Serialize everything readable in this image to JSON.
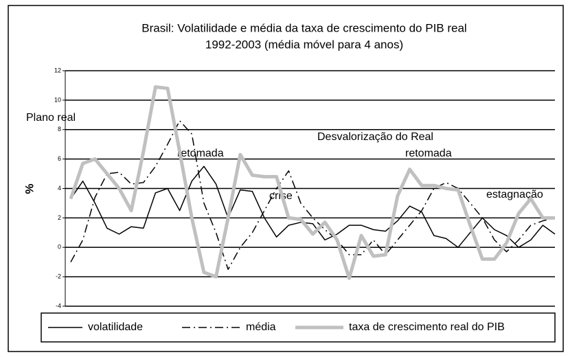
{
  "chart_data": {
    "type": "line",
    "title": "Brasil: Volatilidade e média da taxa de crescimento do PIB real",
    "subtitle": "1992-2003 (média móvel para 4 anos)",
    "y_label": "%",
    "annotations": [
      "Plano real",
      "retomada",
      "Desvalorização do Real",
      "retomada",
      "crise",
      "estagnação"
    ],
    "categories": [
      null,
      null,
      null,
      null,
      null,
      null,
      null,
      null,
      null,
      null,
      null,
      null,
      null,
      null,
      null,
      null,
      null,
      null,
      null,
      null,
      null,
      null,
      null,
      null,
      null,
      null,
      null,
      null,
      null,
      null,
      null,
      null,
      null,
      null,
      null,
      null,
      null,
      null,
      null,
      null,
      null
    ],
    "series": [
      {
        "name": "volatilidade",
        "color": "#000000",
        "values": [
          3.3,
          4.5,
          3.0,
          1.3,
          0.9,
          1.4,
          1.3,
          3.7,
          4.0,
          2.5,
          4.5,
          5.5,
          4.3,
          2.0,
          3.9,
          3.8,
          2.0,
          0.7,
          1.5,
          1.7,
          1.6,
          0.5,
          0.9,
          1.5,
          1.5,
          1.2,
          1.1,
          1.8,
          2.8,
          2.4,
          0.8,
          0.6,
          0.0,
          1.0,
          2.0,
          1.2,
          0.8,
          0.0,
          0.5,
          1.5,
          0.9
        ]
      },
      {
        "name": "média",
        "color": "#000000",
        "values": [
          -1.0,
          0.5,
          3.4,
          5.0,
          5.1,
          4.3,
          4.4,
          5.5,
          7.0,
          8.6,
          7.7,
          3.0,
          1.0,
          -1.5,
          0.0,
          1.0,
          2.5,
          4.0,
          5.2,
          3.0,
          2.0,
          1.2,
          0.5,
          -0.5,
          -0.5,
          0.5,
          -0.5,
          0.5,
          1.5,
          2.5,
          4.0,
          4.4,
          4.0,
          3.0,
          2.0,
          0.5,
          -0.3,
          0.5,
          1.5,
          1.8,
          2.0
        ]
      },
      {
        "name": "taxa de crescimento real do PIB",
        "color": "#c0c0c0",
        "values": [
          3.3,
          5.7,
          6.0,
          5.0,
          4.0,
          2.5,
          6.5,
          10.9,
          10.8,
          6.5,
          2.0,
          -1.7,
          -2.0,
          2.0,
          6.3,
          4.9,
          4.8,
          4.8,
          2.0,
          1.9,
          0.9,
          1.7,
          0.5,
          -2.1,
          0.8,
          -0.6,
          -0.5,
          3.5,
          5.3,
          4.2,
          4.2,
          4.0,
          3.9,
          1.5,
          -0.8,
          -0.8,
          0.3,
          2.3,
          3.3,
          2.0,
          2.0
        ]
      }
    ],
    "ylim": [
      -4,
      12
    ],
    "yticks": [
      -4,
      -2,
      0,
      2,
      4,
      6,
      8,
      10,
      12
    ],
    "grid": true,
    "legend": "bottom"
  }
}
